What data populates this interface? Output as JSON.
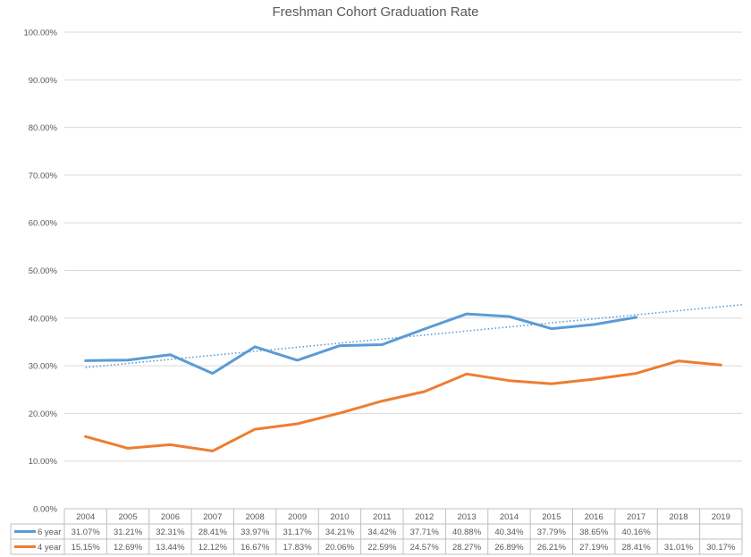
{
  "chart_data": {
    "type": "line",
    "title": "Freshman Cohort Graduation Rate",
    "xlabel": "",
    "ylabel": "",
    "categories": [
      "2004",
      "2005",
      "2006",
      "2007",
      "2008",
      "2009",
      "2010",
      "2011",
      "2012",
      "2013",
      "2014",
      "2015",
      "2016",
      "2017",
      "2018",
      "2019"
    ],
    "ylim": [
      0,
      100
    ],
    "yticks": [
      "0.00%",
      "10.00%",
      "20.00%",
      "30.00%",
      "40.00%",
      "50.00%",
      "60.00%",
      "70.00%",
      "80.00%",
      "90.00%",
      "100.00%"
    ],
    "grid": true,
    "legend": "data-table",
    "series": [
      {
        "name": "6 year",
        "color": "#5B9BD5",
        "values": [
          31.07,
          31.21,
          32.31,
          28.41,
          33.97,
          31.17,
          34.21,
          34.42,
          37.71,
          40.88,
          40.34,
          37.79,
          38.65,
          40.16,
          null,
          null
        ],
        "labels": [
          "31.07%",
          "31.21%",
          "32.31%",
          "28.41%",
          "33.97%",
          "31.17%",
          "34.21%",
          "34.42%",
          "37.71%",
          "40.88%",
          "40.34%",
          "37.79%",
          "38.65%",
          "40.16%",
          "",
          ""
        ],
        "trendline": "linear"
      },
      {
        "name": "4 year",
        "color": "#ED7D31",
        "values": [
          15.15,
          12.69,
          13.44,
          12.12,
          16.67,
          17.83,
          20.06,
          22.59,
          24.57,
          28.27,
          26.89,
          26.21,
          27.19,
          28.41,
          31.01,
          30.17
        ],
        "labels": [
          "15.15%",
          "12.69%",
          "13.44%",
          "12.12%",
          "16.67%",
          "17.83%",
          "20.06%",
          "22.59%",
          "24.57%",
          "28.27%",
          "26.89%",
          "26.21%",
          "27.19%",
          "28.41%",
          "31.01%",
          "30.17%"
        ]
      }
    ]
  }
}
